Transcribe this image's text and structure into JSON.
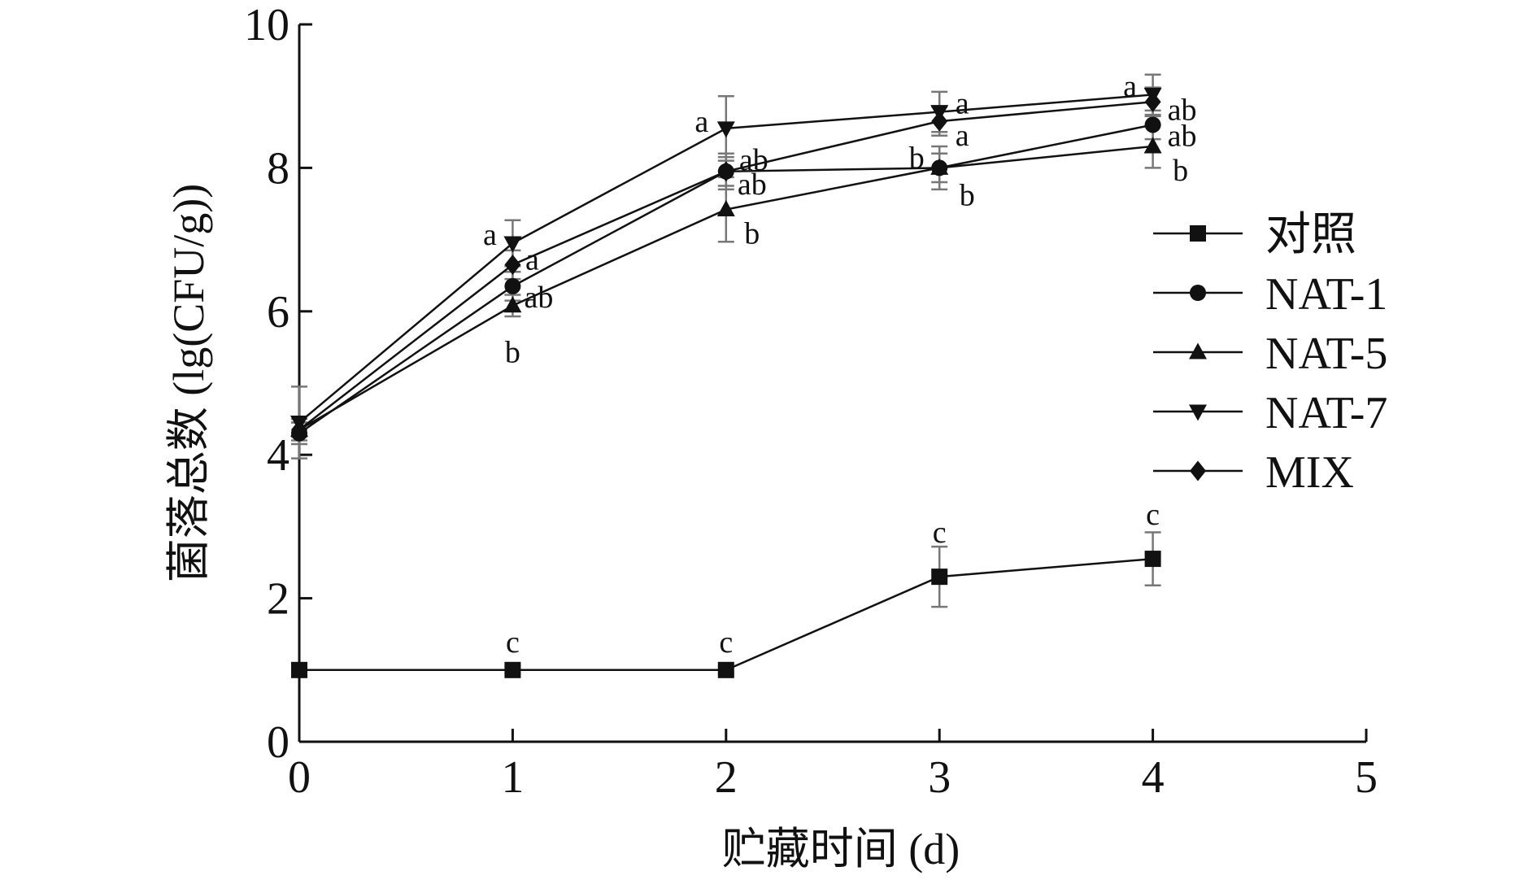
{
  "chart_data": {
    "type": "line",
    "title": "",
    "xlabel": "贮藏时间 (d)",
    "ylabel": "菌落总数 (lg(CFU/g))",
    "xlim": [
      0,
      5
    ],
    "ylim": [
      0,
      10
    ],
    "x_ticks": [
      "0",
      "1",
      "2",
      "3",
      "4",
      "5"
    ],
    "y_ticks": [
      "0",
      "2",
      "4",
      "6",
      "8",
      "10"
    ],
    "grid": false,
    "legend_position": "right",
    "x": [
      0,
      1,
      2,
      3,
      4
    ],
    "series": [
      {
        "name": "对照",
        "marker": "square",
        "values": [
          1.0,
          1.0,
          1.0,
          2.3,
          2.55
        ],
        "errors": [
          0.0,
          0.05,
          0.05,
          0.42,
          0.37
        ],
        "significance": [
          "",
          "c",
          "c",
          "c",
          "c"
        ]
      },
      {
        "name": "NAT-1",
        "marker": "circle",
        "values": [
          4.3,
          6.35,
          7.95,
          8.0,
          8.6
        ],
        "errors": [
          0.15,
          0.2,
          0.25,
          0.2,
          0.2
        ],
        "significance": [
          "",
          "ab",
          "ab",
          "b",
          "ab"
        ]
      },
      {
        "name": "NAT-5",
        "marker": "triangle-up",
        "values": [
          4.35,
          6.08,
          7.42,
          8.0,
          8.3
        ],
        "errors": [
          0.1,
          0.15,
          0.45,
          0.3,
          0.3
        ],
        "significance": [
          "",
          "b",
          "b",
          "b",
          "b"
        ]
      },
      {
        "name": "NAT-7",
        "marker": "triangle-down",
        "values": [
          4.45,
          6.95,
          8.55,
          8.78,
          9.02
        ],
        "errors": [
          0.5,
          0.32,
          0.45,
          0.28,
          0.28
        ],
        "significance": [
          "",
          "a",
          "a",
          "a",
          "a"
        ]
      },
      {
        "name": "MIX",
        "marker": "diamond",
        "values": [
          4.35,
          6.65,
          7.95,
          8.65,
          8.92
        ],
        "errors": [
          0.15,
          0.2,
          0.2,
          0.2,
          0.2
        ],
        "significance": [
          "",
          "a",
          "ab",
          "a",
          "ab"
        ]
      }
    ]
  }
}
